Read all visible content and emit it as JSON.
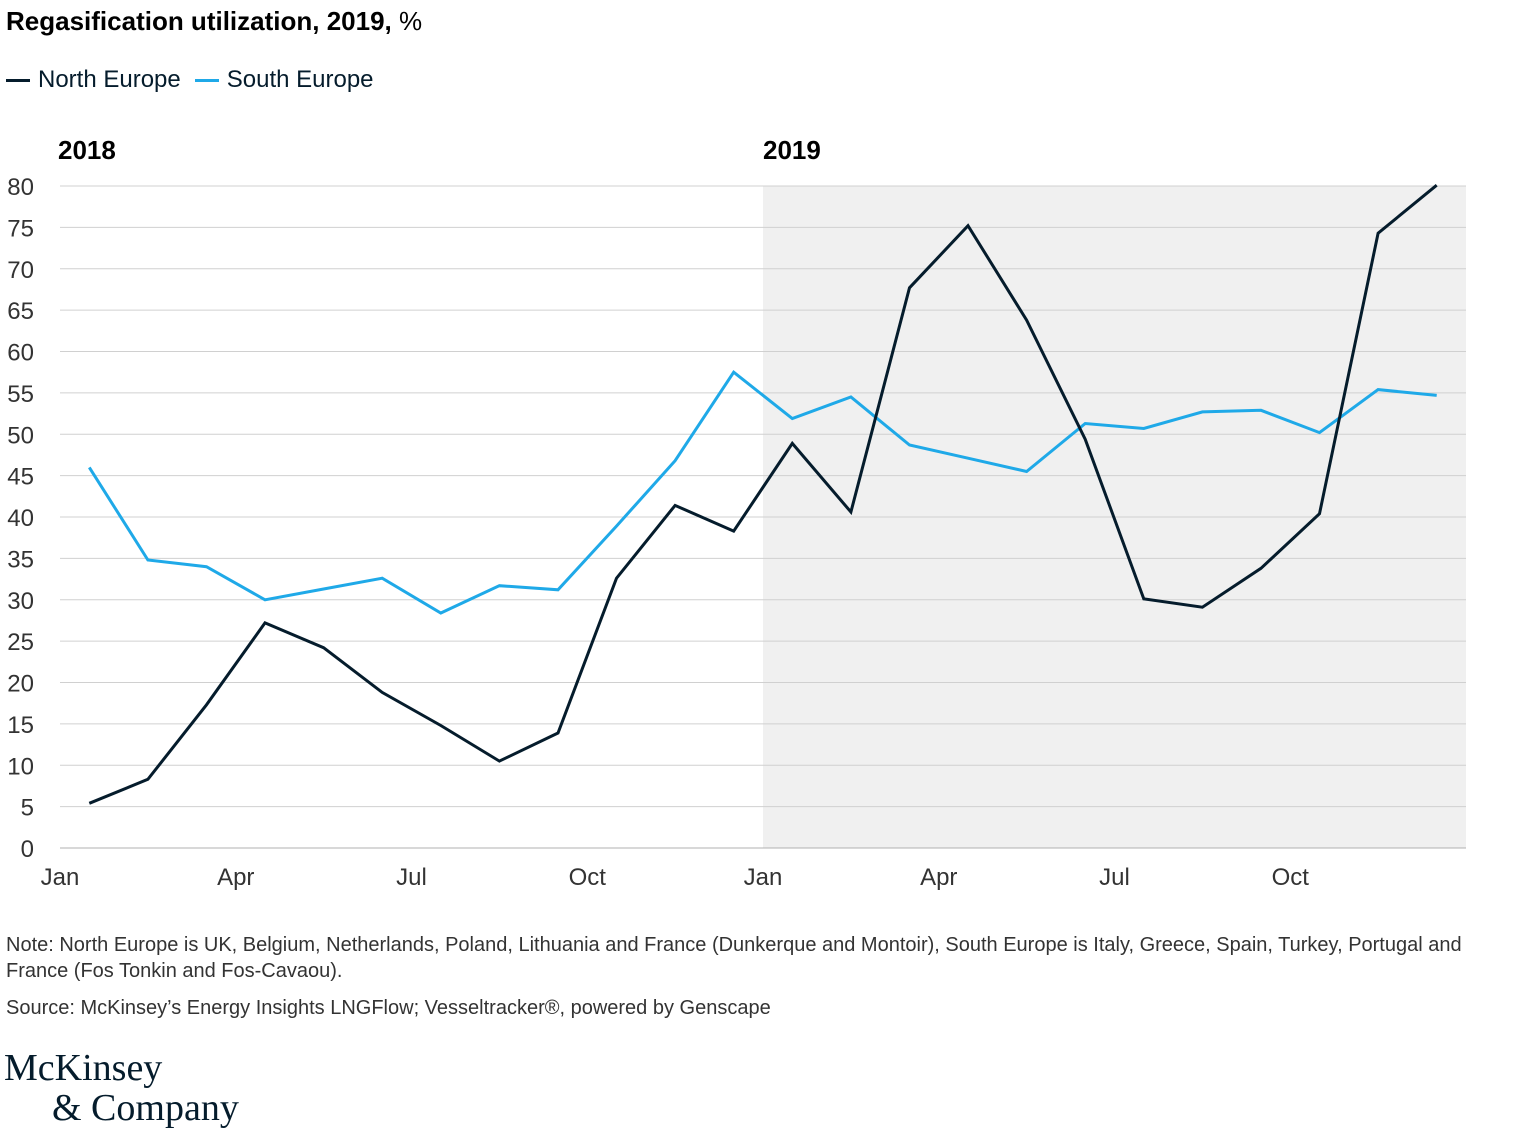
{
  "title": {
    "bold": "Regasification utilization, 2019,",
    "unit": " %"
  },
  "legend": [
    {
      "label": "North Europe",
      "color": "#051c2c"
    },
    {
      "label": "South Europe",
      "color": "#1fa9e8"
    }
  ],
  "period_labels": [
    "2018",
    "2019"
  ],
  "note": "Note: North Europe is UK, Belgium, Netherlands, Poland, Lithuania and France (Dunkerque and Montoir), South Europe is Italy, Greece, Spain, Turkey, Portugal and France (Fos Tonkin and Fos-Cavaou).",
  "source": "Source: McKinsey’s Energy Insights LNGFlow; Vesseltracker®, powered by Genscape",
  "logo": [
    "McKinsey",
    "& Company"
  ],
  "chart_data": {
    "type": "line",
    "x": [
      "2018-01",
      "2018-02",
      "2018-03",
      "2018-04",
      "2018-05",
      "2018-06",
      "2018-07",
      "2018-08",
      "2018-09",
      "2018-10",
      "2018-11",
      "2018-12",
      "2019-01",
      "2019-02",
      "2019-03",
      "2019-04",
      "2019-05",
      "2019-06",
      "2019-07",
      "2019-08",
      "2019-09",
      "2019-10",
      "2019-11",
      "2019-12"
    ],
    "x_tick_labels": [
      "Jan",
      "Apr",
      "Jul",
      "Oct",
      "Jan",
      "Apr",
      "Jul",
      "Oct"
    ],
    "y_ticks": [
      0,
      5,
      10,
      15,
      20,
      25,
      30,
      35,
      40,
      45,
      50,
      55,
      60,
      65,
      70,
      75,
      80
    ],
    "ylim": [
      0,
      80
    ],
    "shaded_region": "2019",
    "grid": true,
    "series": [
      {
        "name": "North Europe",
        "color": "#051c2c",
        "values": [
          5.4,
          8.3,
          17.3,
          27.2,
          24.2,
          18.8,
          14.8,
          10.5,
          13.9,
          32.6,
          41.4,
          38.3,
          48.9,
          40.6,
          67.7,
          75.2,
          63.8,
          49.4,
          30.1,
          29.1,
          33.8,
          40.4,
          74.3,
          80.1
        ]
      },
      {
        "name": "South Europe",
        "color": "#1fa9e8",
        "values": [
          46.0,
          34.8,
          34.0,
          30.0,
          31.3,
          32.6,
          28.4,
          31.7,
          31.2,
          38.9,
          46.8,
          57.5,
          51.9,
          54.5,
          48.7,
          47.1,
          45.5,
          51.3,
          50.7,
          52.7,
          52.9,
          50.2,
          55.4,
          54.7
        ]
      }
    ]
  }
}
